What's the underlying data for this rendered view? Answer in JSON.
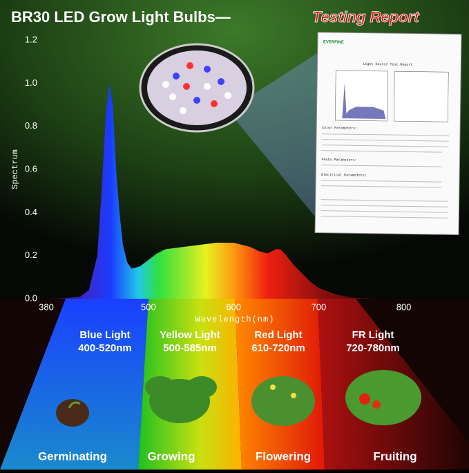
{
  "header": {
    "title": "BR30 LED Grow Light Bulbs—",
    "highlight": "Testing Report"
  },
  "chart_data": {
    "type": "area",
    "x_label": "Wavelength(nm)",
    "y_label": "Spectrum",
    "x": [
      380,
      400,
      420,
      430,
      440,
      445,
      450,
      454,
      458,
      462,
      466,
      470,
      475,
      480,
      490,
      500,
      510,
      520,
      540,
      560,
      580,
      600,
      610,
      620,
      630,
      640,
      650,
      655,
      660,
      670,
      680,
      690,
      700,
      720,
      740,
      760,
      780
    ],
    "values": [
      0,
      0.002,
      0.01,
      0.04,
      0.2,
      0.5,
      0.85,
      1.0,
      0.9,
      0.6,
      0.4,
      0.25,
      0.17,
      0.14,
      0.15,
      0.18,
      0.21,
      0.23,
      0.24,
      0.25,
      0.26,
      0.26,
      0.25,
      0.24,
      0.22,
      0.21,
      0.23,
      0.23,
      0.21,
      0.16,
      0.12,
      0.08,
      0.05,
      0.02,
      0.005,
      0.001,
      0
    ],
    "xlim": [
      380,
      875
    ],
    "ylim": [
      0,
      1.2
    ],
    "xticks": [
      380,
      500,
      600,
      700,
      800
    ],
    "yticks": [
      {
        "value": 0,
        "label": "0.0"
      },
      0.2,
      0.4,
      0.6,
      0.8,
      {
        "value": 1,
        "label": "1.0"
      },
      1.2
    ]
  },
  "report": {
    "logo": "EVERFINE",
    "heading": "Light Source Test Report",
    "sections": [
      "Color Parameters:",
      "Photo Parameters:",
      "Electrical Parameters:"
    ]
  },
  "bands": [
    {
      "name": "Blue Light",
      "range": "400-520nm",
      "stage": "Germinating"
    },
    {
      "name": "Yellow Light",
      "range": "500-585nm",
      "stage": "Growing"
    },
    {
      "name": "Red Light",
      "range": "610-720nm",
      "stage": "Flowering"
    },
    {
      "name": "FR Light",
      "range": "720-780nm",
      "stage": "Fruiting"
    }
  ]
}
